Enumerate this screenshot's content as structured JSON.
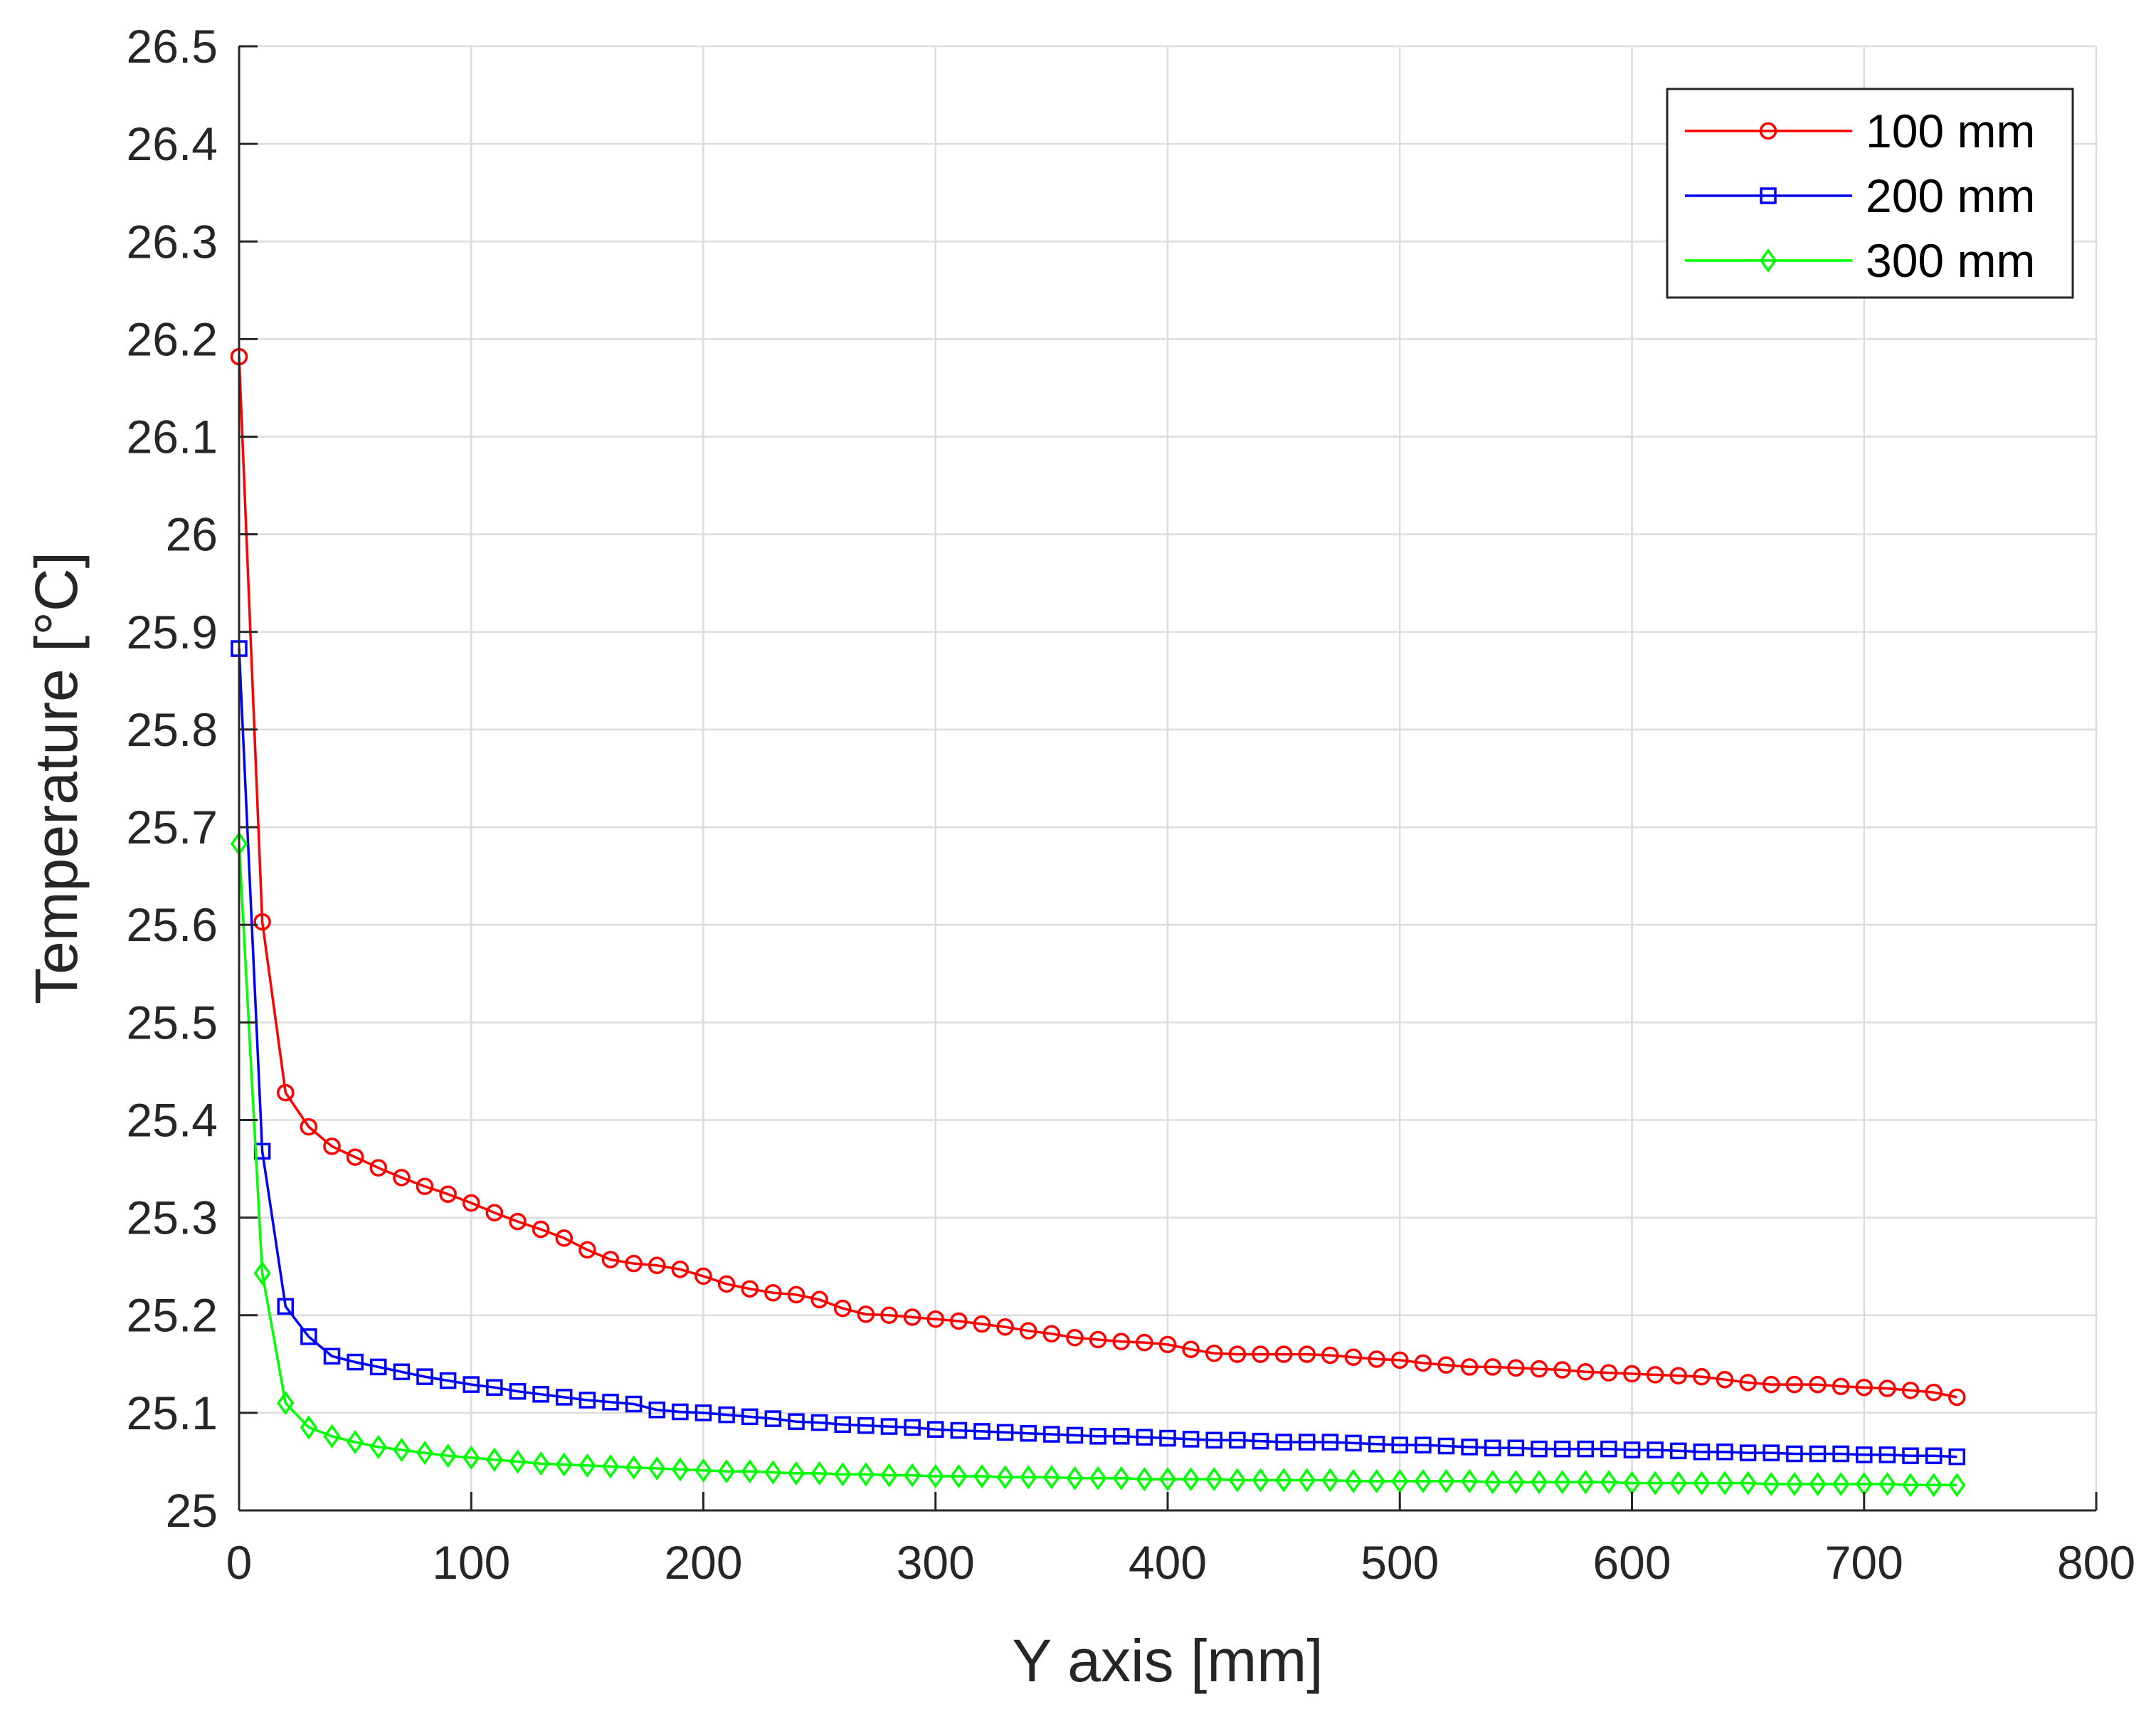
{
  "chart_data": {
    "type": "line",
    "title": "",
    "xlabel": "Y axis [mm]",
    "ylabel": "Temperature [°C]",
    "xlim": [
      0,
      800
    ],
    "ylim": [
      25,
      26.5
    ],
    "xticks": [
      0,
      100,
      200,
      300,
      400,
      500,
      600,
      700,
      800
    ],
    "yticks": [
      25,
      25.1,
      25.2,
      25.3,
      25.4,
      25.5,
      25.6,
      25.7,
      25.8,
      25.9,
      26,
      26.1,
      26.2,
      26.3,
      26.4,
      26.5
    ],
    "xtick_labels": [
      "0",
      "100",
      "200",
      "300",
      "400",
      "500",
      "600",
      "700",
      "800"
    ],
    "ytick_labels": [
      "25",
      "25.1",
      "25.2",
      "25.3",
      "25.4",
      "25.5",
      "25.6",
      "25.7",
      "25.8",
      "25.9",
      "26",
      "26.1",
      "26.2",
      "26.3",
      "26.4",
      "26.5"
    ],
    "grid": true,
    "legend_position": "top-right",
    "x": [
      0,
      10,
      20,
      30,
      40,
      50,
      60,
      70,
      80,
      90,
      100,
      110,
      120,
      130,
      140,
      150,
      160,
      170,
      180,
      190,
      200,
      210,
      220,
      230,
      240,
      250,
      260,
      270,
      280,
      290,
      300,
      310,
      320,
      330,
      340,
      350,
      360,
      370,
      380,
      390,
      400,
      410,
      420,
      430,
      440,
      450,
      460,
      470,
      480,
      490,
      500,
      510,
      520,
      530,
      540,
      550,
      560,
      570,
      580,
      590,
      600,
      610,
      620,
      630,
      640,
      650,
      660,
      670,
      680,
      690,
      700,
      710,
      720,
      730,
      740
    ],
    "series": [
      {
        "name": "100 mm",
        "color": "#ff0000",
        "marker": "circle",
        "values": [
          26.182,
          25.603,
          25.428,
          25.393,
          25.373,
          25.362,
          25.351,
          25.341,
          25.332,
          25.324,
          25.315,
          25.305,
          25.296,
          25.288,
          25.279,
          25.267,
          25.257,
          25.253,
          25.251,
          25.247,
          25.24,
          25.232,
          25.227,
          25.223,
          25.221,
          25.216,
          25.207,
          25.201,
          25.2,
          25.198,
          25.196,
          25.194,
          25.191,
          25.188,
          25.184,
          25.181,
          25.177,
          25.175,
          25.173,
          25.172,
          25.17,
          25.165,
          25.161,
          25.16,
          25.16,
          25.16,
          25.16,
          25.159,
          25.157,
          25.155,
          25.154,
          25.151,
          25.149,
          25.147,
          25.147,
          25.146,
          25.145,
          25.144,
          25.142,
          25.141,
          25.14,
          25.139,
          25.138,
          25.137,
          25.134,
          25.131,
          25.129,
          25.129,
          25.129,
          25.127,
          25.126,
          25.125,
          25.123,
          25.121,
          25.116
        ]
      },
      {
        "name": "200 mm",
        "color": "#0000ff",
        "marker": "square",
        "values": [
          25.883,
          25.368,
          25.209,
          25.178,
          25.158,
          25.152,
          25.147,
          25.142,
          25.137,
          25.133,
          25.129,
          25.126,
          25.122,
          25.119,
          25.116,
          25.113,
          25.111,
          25.109,
          25.103,
          25.101,
          25.1,
          25.098,
          25.096,
          25.094,
          25.091,
          25.09,
          25.088,
          25.087,
          25.086,
          25.085,
          25.083,
          25.082,
          25.081,
          25.08,
          25.079,
          25.078,
          25.077,
          25.076,
          25.076,
          25.075,
          25.074,
          25.073,
          25.072,
          25.072,
          25.071,
          25.07,
          25.07,
          25.07,
          25.069,
          25.068,
          25.067,
          25.067,
          25.066,
          25.065,
          25.064,
          25.064,
          25.063,
          25.063,
          25.063,
          25.063,
          25.062,
          25.062,
          25.061,
          25.06,
          25.06,
          25.059,
          25.059,
          25.058,
          25.058,
          25.058,
          25.057,
          25.057,
          25.056,
          25.056,
          25.055
        ]
      },
      {
        "name": "300 mm",
        "color": "#00ff00",
        "marker": "diamond",
        "values": [
          25.683,
          25.243,
          25.11,
          25.085,
          25.076,
          25.07,
          25.065,
          25.062,
          25.059,
          25.056,
          25.054,
          25.052,
          25.05,
          25.048,
          25.047,
          25.046,
          25.045,
          25.044,
          25.043,
          25.042,
          25.041,
          25.04,
          25.04,
          25.039,
          25.038,
          25.038,
          25.037,
          25.037,
          25.036,
          25.036,
          25.035,
          25.035,
          25.035,
          25.034,
          25.034,
          25.034,
          25.033,
          25.033,
          25.033,
          25.032,
          25.032,
          25.032,
          25.032,
          25.031,
          25.031,
          25.031,
          25.031,
          25.031,
          25.03,
          25.03,
          25.03,
          25.03,
          25.03,
          25.03,
          25.029,
          25.029,
          25.029,
          25.029,
          25.029,
          25.029,
          25.028,
          25.028,
          25.028,
          25.028,
          25.028,
          25.028,
          25.027,
          25.027,
          25.027,
          25.027,
          25.027,
          25.027,
          25.026,
          25.026,
          25.026
        ]
      }
    ]
  }
}
